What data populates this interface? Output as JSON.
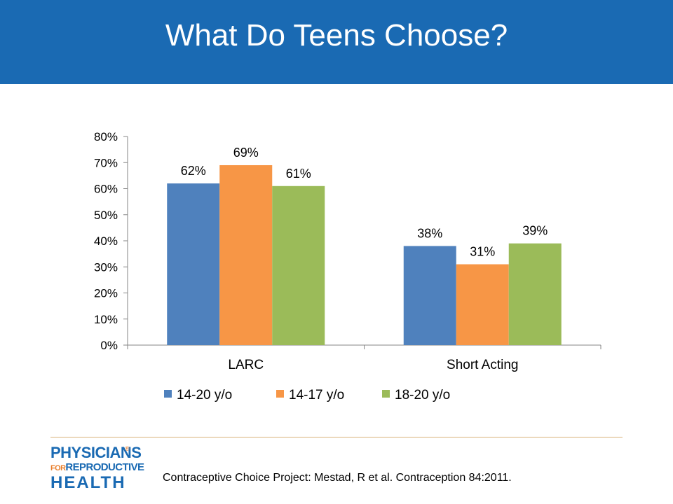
{
  "slide": {
    "title": "What Do Teens Choose?",
    "source": "Contraceptive Choice Project: Mestad, R et al. Contraception 84:2011."
  },
  "logo": {
    "line1": "PHYSICIANS",
    "line2_for": "FOR",
    "line2_rest": "REPRODUCTIVE",
    "line3": "HEALTH",
    "registered_mark": "®"
  },
  "chart_data": {
    "type": "bar",
    "title": "",
    "xlabel": "",
    "ylabel": "",
    "categories": [
      "LARC",
      "Short Acting"
    ],
    "series": [
      {
        "name": "14-20 y/o",
        "values": [
          62,
          38
        ],
        "labels": [
          "62%",
          "38%"
        ],
        "color": "#4f81bd"
      },
      {
        "name": "14-17 y/o",
        "values": [
          69,
          31
        ],
        "labels": [
          "69%",
          "31%"
        ],
        "color": "#f79646"
      },
      {
        "name": "18-20 y/o",
        "values": [
          61,
          39
        ],
        "labels": [
          "61%",
          "39%"
        ],
        "color": "#9bbb59"
      }
    ],
    "ylim": [
      0,
      80
    ],
    "yticks": [
      0,
      10,
      20,
      30,
      40,
      50,
      60,
      70,
      80
    ],
    "ytick_labels": [
      "0%",
      "10%",
      "20%",
      "30%",
      "40%",
      "50%",
      "60%",
      "70%",
      "80%"
    ],
    "legend_position": "bottom",
    "grid": false
  }
}
